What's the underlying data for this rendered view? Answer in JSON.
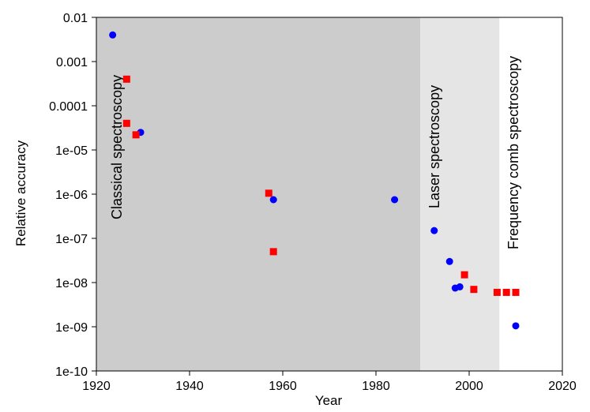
{
  "chart_data": {
    "type": "scatter",
    "xlabel": "Year",
    "ylabel": "Relative accuracy",
    "xlim": [
      1920,
      2020
    ],
    "ylim": [
      1e-10,
      0.01
    ],
    "yscale": "log",
    "x_ticks": [
      1920,
      1940,
      1960,
      1980,
      2000,
      2020
    ],
    "x_tick_labels": [
      "1920",
      "1940",
      "1960",
      "1980",
      "2000",
      "2020"
    ],
    "y_ticks": [
      1e-10,
      1e-09,
      1e-08,
      1e-07,
      1e-06,
      1e-05,
      0.0001,
      0.001,
      0.01
    ],
    "y_tick_labels": [
      "1e-10",
      "1e-09",
      "1e-08",
      "1e-07",
      "1e-06",
      "1e-05",
      "0.0001",
      "0.001",
      "0.01"
    ],
    "grid": false,
    "legend": "none",
    "regions": [
      {
        "label": "Classical spectroscopy",
        "x_start": 1920,
        "x_end": 1989.5,
        "color": "#cccccc"
      },
      {
        "label": "Laser spectroscopy",
        "x_start": 1989.5,
        "x_end": 2006.5,
        "color": "#e5e5e5"
      },
      {
        "label": "Frequency comb spectroscopy",
        "x_start": 2006.5,
        "x_end": 2020,
        "color": "#ffffff"
      }
    ],
    "series": [
      {
        "marker": "circle",
        "color": "#0000ff",
        "points": [
          [
            1923.5,
            0.004
          ],
          [
            1929.5,
            2.5e-05
          ],
          [
            1958,
            7.5e-07
          ],
          [
            1984,
            7.5e-07
          ],
          [
            1992.5,
            1.5e-07
          ],
          [
            1995.8,
            3e-08
          ],
          [
            1997,
            7.5e-09
          ],
          [
            1998,
            8e-09
          ],
          [
            2010,
            1.05e-09
          ]
        ]
      },
      {
        "marker": "square",
        "color": "#ff0000",
        "points": [
          [
            1926.5,
            0.0004
          ],
          [
            1926.5,
            4e-05
          ],
          [
            1928.5,
            2.2e-05
          ],
          [
            1957,
            1.05e-06
          ],
          [
            1958,
            5e-08
          ],
          [
            1999,
            1.5e-08
          ],
          [
            2001,
            7e-09
          ],
          [
            2006,
            6e-09
          ],
          [
            2008,
            6e-09
          ],
          [
            2010,
            6e-09
          ]
        ]
      }
    ]
  }
}
